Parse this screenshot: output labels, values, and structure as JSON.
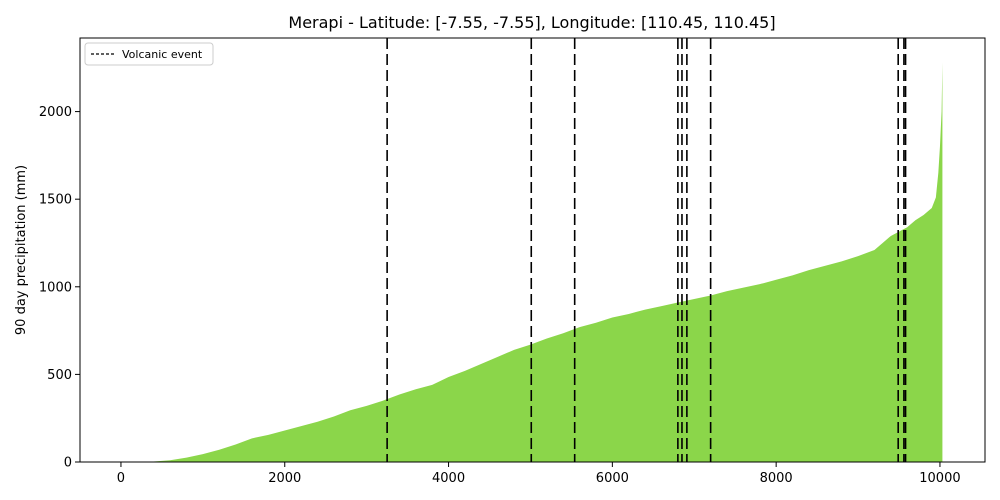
{
  "chart_data": {
    "type": "area",
    "title": "Merapi - Latitude: [-7.55, -7.55], Longitude: [110.45, 110.45]",
    "xlabel": "",
    "ylabel": "90 day precipitation (mm)",
    "xlim": [
      -500,
      10550
    ],
    "ylim": [
      0,
      2420
    ],
    "xticks": [
      0,
      2000,
      4000,
      6000,
      8000,
      10000
    ],
    "xtick_labels": [
      "0",
      "2000",
      "4000",
      "6000",
      "8000",
      "10000"
    ],
    "yticks": [
      0,
      500,
      1000,
      1500,
      2000
    ],
    "ytick_labels": [
      "0",
      "500",
      "1000",
      "1500",
      "2000"
    ],
    "series": [
      {
        "color": "#8bd64a",
        "x": [
          0,
          200,
          400,
          600,
          800,
          1000,
          1200,
          1400,
          1600,
          1800,
          2000,
          2200,
          2400,
          2600,
          2800,
          3000,
          3200,
          3400,
          3600,
          3800,
          4000,
          4200,
          4400,
          4600,
          4800,
          5000,
          5200,
          5400,
          5600,
          5800,
          6000,
          6200,
          6400,
          6600,
          6800,
          7000,
          7200,
          7400,
          7600,
          7800,
          8000,
          8200,
          8400,
          8600,
          8800,
          9000,
          9200,
          9300,
          9400,
          9500,
          9600,
          9700,
          9800,
          9900,
          9950,
          9980,
          10000,
          10020,
          10030
        ],
        "values": [
          0,
          0,
          3,
          10,
          25,
          45,
          70,
          100,
          135,
          155,
          180,
          205,
          230,
          260,
          295,
          320,
          350,
          385,
          415,
          440,
          485,
          520,
          560,
          600,
          640,
          670,
          705,
          735,
          770,
          795,
          825,
          845,
          870,
          890,
          910,
          930,
          950,
          975,
          995,
          1015,
          1040,
          1065,
          1095,
          1120,
          1145,
          1175,
          1210,
          1250,
          1290,
          1315,
          1340,
          1380,
          1410,
          1450,
          1510,
          1650,
          1800,
          2000,
          2280
        ]
      }
    ],
    "vlines": {
      "label": "Volcanic event",
      "color": "#000000",
      "x": [
        3250,
        5010,
        5540,
        6800,
        6850,
        6910,
        7200,
        9490,
        9560,
        9580
      ]
    },
    "legend": "top-left",
    "grid": false
  }
}
